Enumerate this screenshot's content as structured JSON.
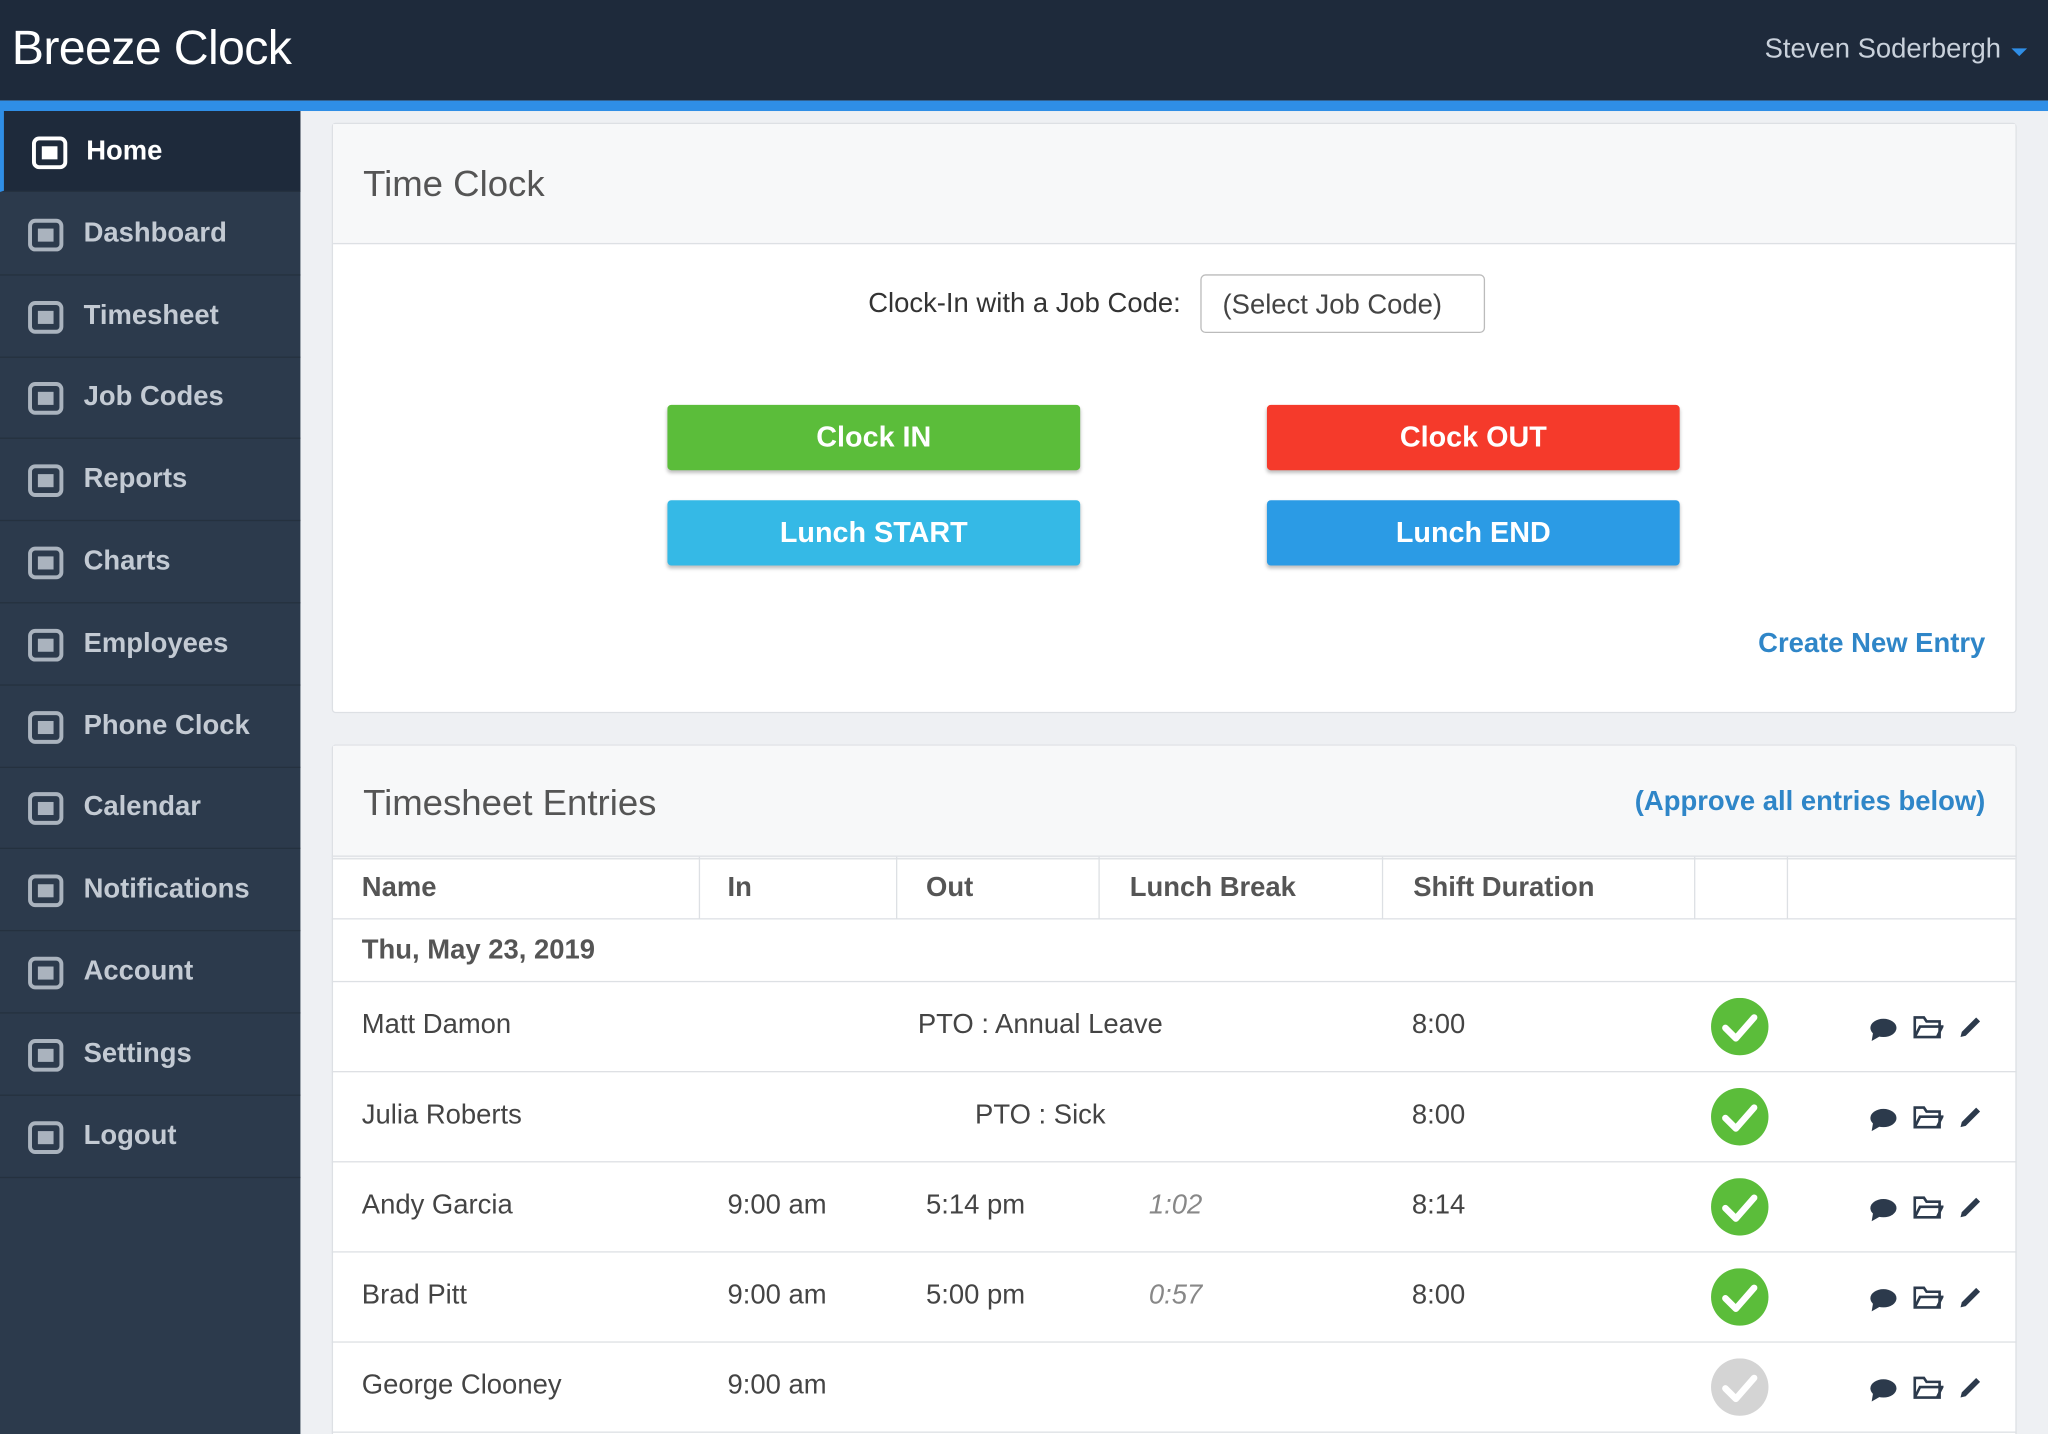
{
  "header": {
    "brand": "Breeze Clock",
    "user": "Steven Soderbergh"
  },
  "sidebar": {
    "items": [
      "Home",
      "Dashboard",
      "Timesheet",
      "Job Codes",
      "Reports",
      "Charts",
      "Employees",
      "Phone Clock",
      "Calendar",
      "Notifications",
      "Account",
      "Settings",
      "Logout"
    ]
  },
  "time_clock": {
    "title": "Time Clock",
    "job_code_label": "Clock-In with a Job Code:",
    "job_code_placeholder": "(Select Job Code)",
    "buttons": [
      {
        "label": "Clock IN",
        "color": "#5bbd3a"
      },
      {
        "label": "Clock OUT",
        "color": "#f53a2b"
      },
      {
        "label": "Lunch START",
        "color": "#35b9e6"
      },
      {
        "label": "Lunch END",
        "color": "#2b9be5"
      }
    ],
    "create_link": "Create New Entry"
  },
  "timesheet": {
    "title": "Timesheet Entries",
    "approve_link": "(Approve all entries below)",
    "columns": [
      "Name",
      "In",
      "Out",
      "Lunch Break",
      "Shift Duration"
    ],
    "date": "Thu, May 23, 2019",
    "rows": [
      {
        "name": "Matt Damon",
        "note": "PTO : Annual Leave",
        "duration": "8:00",
        "approved": true
      },
      {
        "name": "Julia Roberts",
        "note": "PTO : Sick",
        "duration": "8:00",
        "approved": true
      },
      {
        "name": "Andy Garcia",
        "in": "9:00 am",
        "out": "5:14 pm",
        "lunch": "1:02",
        "duration": "8:14",
        "approved": true
      },
      {
        "name": "Brad Pitt",
        "in": "9:00 am",
        "out": "5:00 pm",
        "lunch": "0:57",
        "duration": "8:00",
        "approved": true
      },
      {
        "name": "George Clooney",
        "in": "9:00 am",
        "approved": false
      }
    ]
  }
}
